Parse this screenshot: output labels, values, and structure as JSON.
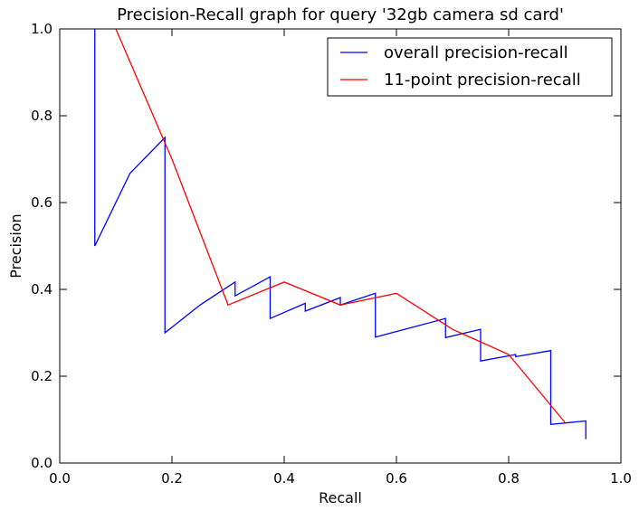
{
  "chart_data": {
    "type": "line",
    "title": "Precision-Recall graph for query '32gb camera sd card'",
    "xlabel": "Recall",
    "ylabel": "Precision",
    "xlim": [
      0.0,
      1.0
    ],
    "ylim": [
      0.0,
      1.0
    ],
    "xticks": [
      "0.0",
      "0.2",
      "0.4",
      "0.6",
      "0.8",
      "1.0"
    ],
    "yticks": [
      "0.0",
      "0.2",
      "0.4",
      "0.6",
      "0.8",
      "1.0"
    ],
    "grid": false,
    "legend_position": "top-right",
    "series": [
      {
        "name": "overall precision-recall",
        "color": "#0000ff",
        "points": [
          [
            0.0625,
            1.0
          ],
          [
            0.0625,
            0.5
          ],
          [
            0.125,
            0.667
          ],
          [
            0.1875,
            0.75
          ],
          [
            0.1875,
            0.3
          ],
          [
            0.25,
            0.364
          ],
          [
            0.3125,
            0.417
          ],
          [
            0.3125,
            0.385
          ],
          [
            0.375,
            0.429
          ],
          [
            0.375,
            0.333
          ],
          [
            0.4375,
            0.368
          ],
          [
            0.4375,
            0.35
          ],
          [
            0.5,
            0.381
          ],
          [
            0.5,
            0.364
          ],
          [
            0.5625,
            0.391
          ],
          [
            0.5625,
            0.29
          ],
          [
            0.6875,
            0.333
          ],
          [
            0.6875,
            0.289
          ],
          [
            0.75,
            0.308
          ],
          [
            0.75,
            0.235
          ],
          [
            0.8125,
            0.25
          ],
          [
            0.8125,
            0.245
          ],
          [
            0.875,
            0.259
          ],
          [
            0.875,
            0.089
          ],
          [
            0.9375,
            0.097
          ],
          [
            0.9375,
            0.055
          ]
        ]
      },
      {
        "name": "11-point precision-recall",
        "color": "#ff0000",
        "points": [
          [
            0.1,
            1.0
          ],
          [
            0.2,
            0.7
          ],
          [
            0.3,
            0.364
          ],
          [
            0.4,
            0.417
          ],
          [
            0.5,
            0.364
          ],
          [
            0.6,
            0.391
          ],
          [
            0.7,
            0.308
          ],
          [
            0.8,
            0.25
          ],
          [
            0.9,
            0.094
          ]
        ]
      }
    ]
  }
}
